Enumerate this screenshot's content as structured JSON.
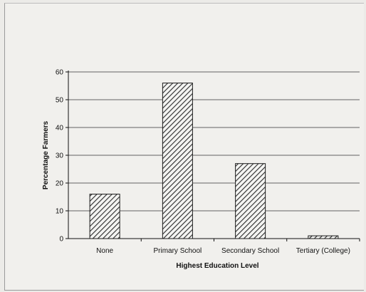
{
  "chart_data": {
    "type": "bar",
    "categories": [
      "None",
      "Primary School",
      "Secondary School",
      "Tertiary (College)"
    ],
    "values": [
      16,
      56,
      27,
      1
    ],
    "xlabel": "Highest Education Level",
    "ylabel": "Percentage Farmers",
    "ylim": [
      0,
      60
    ],
    "yticks": [
      0,
      10,
      20,
      30,
      40,
      50,
      60
    ],
    "grid": true,
    "bar_fill": "diagonal-hatch",
    "colors": {
      "bar_stroke": "#1a1a1a",
      "hatch": "#2a2a2a",
      "bar_background": "#f4f4f2",
      "grid": "#333333"
    }
  }
}
